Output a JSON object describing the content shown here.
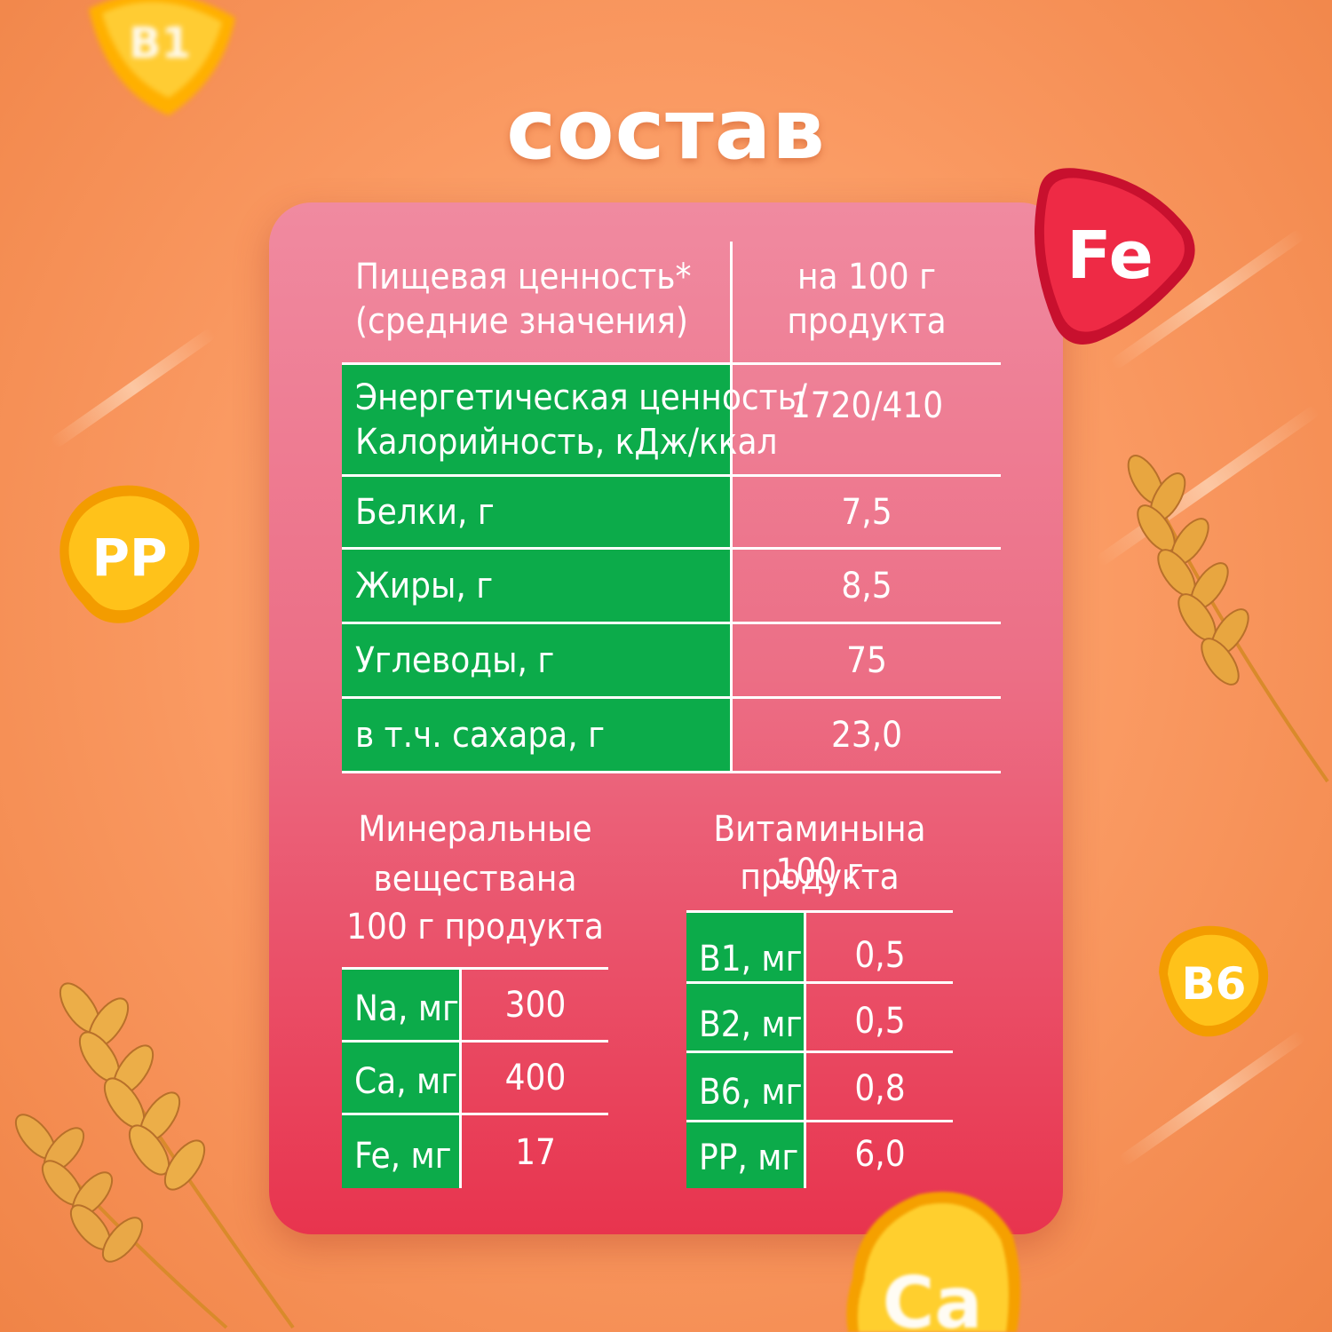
{
  "title": "состав",
  "nutrition": {
    "header_left_line1": "Пищевая ценность*",
    "header_left_line2": "(средние значения)",
    "header_right_line1": "на 100 г",
    "header_right_line2": "продукта",
    "rows": [
      {
        "label_line1": "Энергетическая ценность/",
        "label_line2": "Калорийность, кДж/ккал",
        "value": "1720/410"
      },
      {
        "label_line1": "Белки, г",
        "value": "7,5"
      },
      {
        "label_line1": "Жиры, г",
        "value": "8,5"
      },
      {
        "label_line1": "Углеводы, г",
        "value": "75"
      },
      {
        "label_line1": "в т.ч. сахара, г",
        "value": "23,0"
      }
    ]
  },
  "minerals": {
    "heading_line1": "Минеральные",
    "heading_line2": "веществана",
    "heading_line3": "100 г продукта",
    "rows": [
      {
        "label": "Na, мг",
        "value": "300"
      },
      {
        "label": "Ca, мг",
        "value": "400"
      },
      {
        "label": "Fe, мг",
        "value": "17"
      }
    ]
  },
  "vitamins": {
    "heading_line1": "Витаминына 100 г",
    "heading_line2": "продукта",
    "rows": [
      {
        "label": "B1, мг",
        "value": "0,5"
      },
      {
        "label": "B2, мг",
        "value": "0,5"
      },
      {
        "label": "B6, мг",
        "value": "0,8"
      },
      {
        "label": "PP, мг",
        "value": "6,0"
      }
    ]
  },
  "badges": {
    "fe": "Fe",
    "pp": "PP",
    "b6": "B6",
    "ca": "Ca"
  },
  "colors": {
    "green": "#0cab4a",
    "card_top": "#f08aa0",
    "card_bottom": "#e8344e",
    "badge_red": "#e8213f",
    "badge_yellow": "#ffb300"
  }
}
